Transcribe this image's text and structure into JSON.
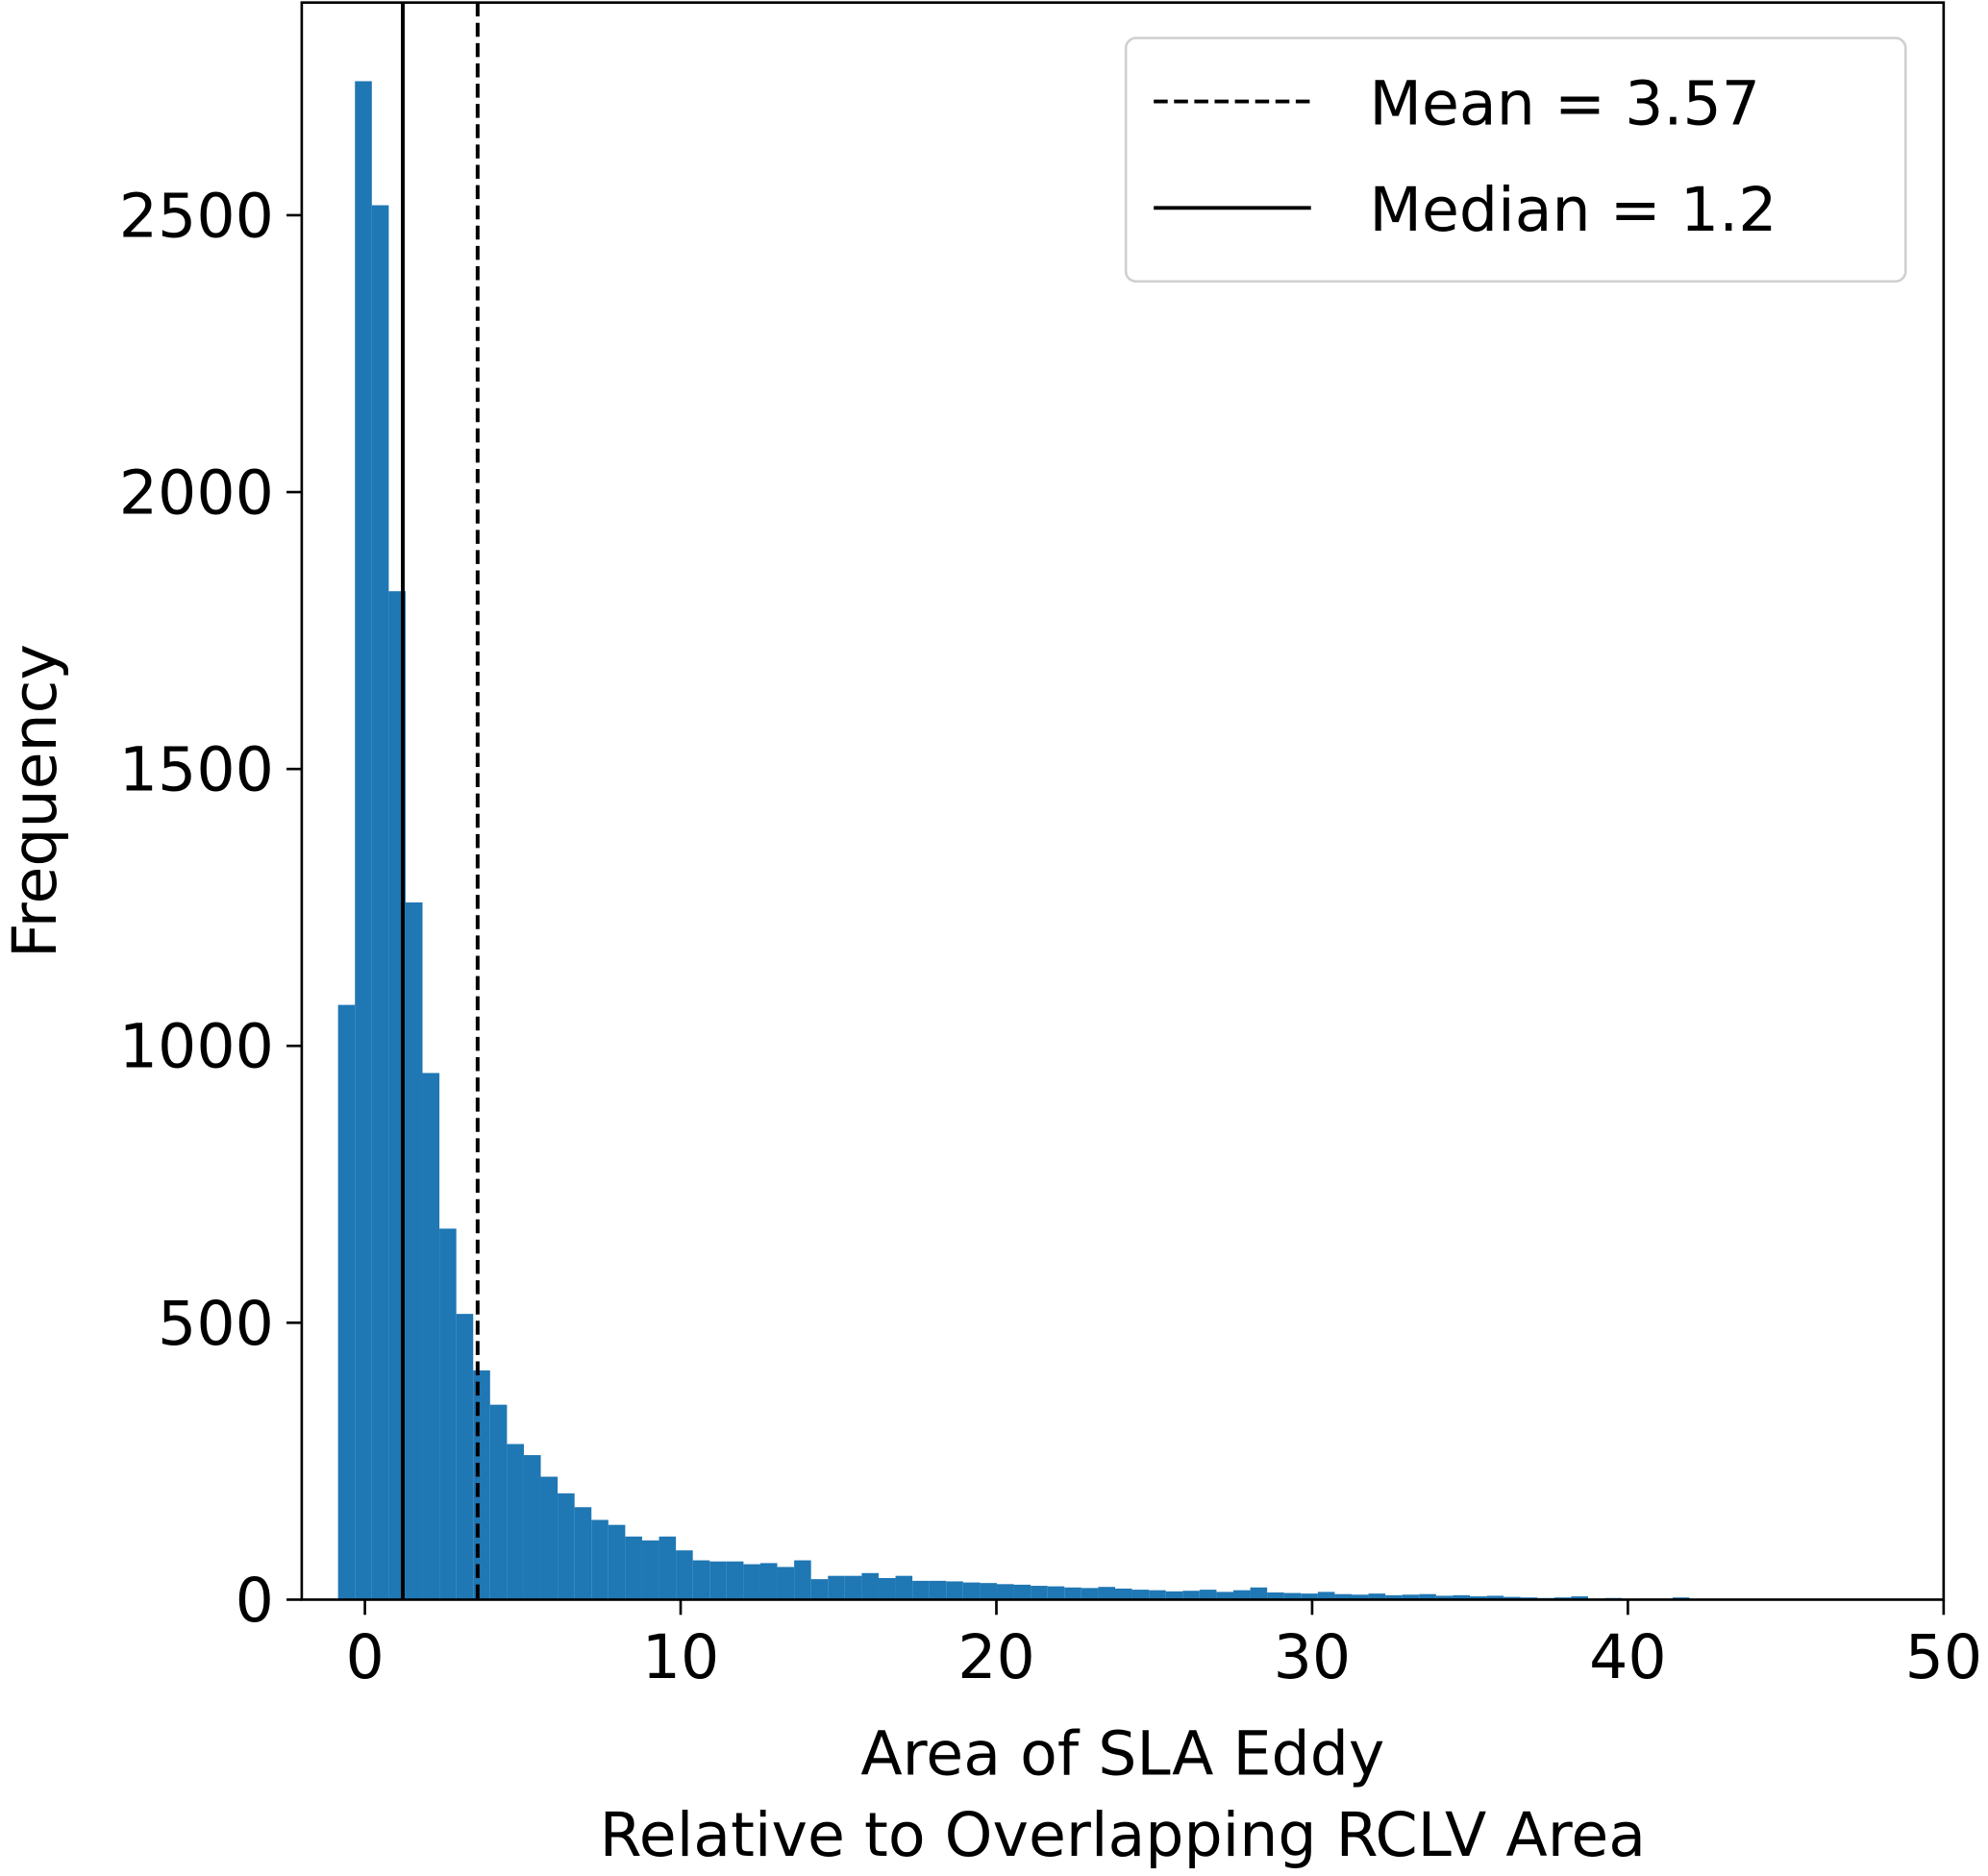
{
  "chart_data": {
    "type": "histogram",
    "xlabel": [
      "Area of SLA Eddy",
      "Relative to Overlapping RCLV Area"
    ],
    "ylabel": "Frequency",
    "color": "#1f77b4",
    "bins": [
      -0.85,
      -0.315,
      0.22,
      0.755,
      1.29,
      1.825,
      2.36,
      2.895,
      3.43,
      3.965,
      4.5,
      5.035,
      5.57,
      6.105,
      6.64,
      7.175,
      7.71,
      8.245,
      8.78,
      9.315,
      9.85,
      10.385,
      10.92,
      11.455,
      11.99,
      12.525,
      13.06,
      13.595,
      14.13,
      14.665,
      15.2,
      15.735,
      16.27,
      16.805,
      17.34,
      17.875,
      18.41,
      18.945,
      19.48,
      20.015,
      20.55,
      21.085,
      21.62,
      22.155,
      22.69,
      23.225,
      23.76,
      24.295,
      24.83,
      25.365,
      25.9,
      26.435,
      26.97,
      27.505,
      28.04,
      28.575,
      29.11,
      29.645,
      30.18,
      30.715,
      31.25,
      31.785,
      32.32,
      32.855,
      33.39,
      33.925,
      34.46,
      34.995,
      35.53,
      36.065,
      36.6,
      37.135,
      37.67,
      38.205,
      38.74,
      39.275,
      39.81,
      40.345,
      40.88,
      41.415,
      41.95
    ],
    "values": [
      1074,
      2742,
      2518,
      1821,
      1259,
      951,
      670,
      516,
      414,
      352,
      281,
      261,
      222,
      192,
      167,
      144,
      135,
      114,
      107,
      114,
      89,
      71,
      69,
      69,
      64,
      66,
      59,
      71,
      37,
      43,
      43,
      48,
      39,
      43,
      34,
      34,
      33,
      31,
      30,
      28,
      27,
      25,
      24,
      22,
      21,
      23,
      20,
      18,
      17,
      15,
      16,
      18,
      14,
      17,
      22,
      13,
      12,
      11,
      14,
      10,
      9,
      11,
      8,
      9,
      10,
      7,
      8,
      6,
      7,
      5,
      4,
      3,
      4,
      6,
      2,
      3,
      1,
      2,
      2,
      4
    ],
    "xlim": [
      -2,
      50
    ],
    "xticks": [
      0,
      10,
      20,
      30,
      40,
      50
    ],
    "ylim": [
      0,
      2884
    ],
    "yticks": [
      0,
      500,
      1000,
      1500,
      2000,
      2500
    ],
    "vlines": [
      {
        "label": "Mean = 3.57",
        "x": 3.57,
        "style": "dashed",
        "color": "#000000"
      },
      {
        "label": "Median = 1.2",
        "x": 1.2,
        "style": "solid",
        "color": "#000000"
      }
    ],
    "legend": "upper right"
  }
}
